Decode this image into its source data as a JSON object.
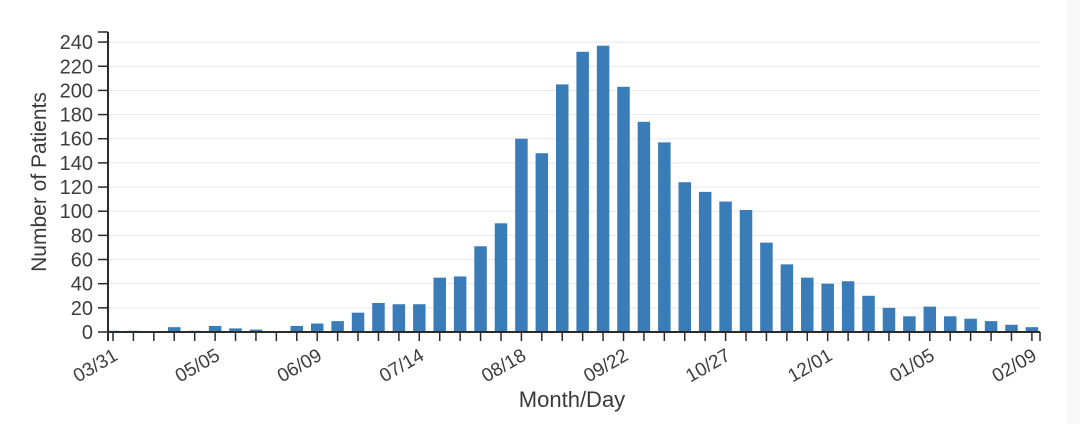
{
  "chart_data": {
    "type": "bar",
    "title": "",
    "xlabel": "Month/Day",
    "ylabel": "Number of Patients",
    "legend": "none",
    "grid": "horizontal",
    "ylim": [
      0,
      248
    ],
    "y_ticks": [
      0,
      20,
      40,
      60,
      80,
      100,
      120,
      140,
      160,
      180,
      200,
      220,
      240
    ],
    "x_label_every": 5,
    "x_tick_labels_visible": [
      "03/31",
      "05/05",
      "06/09",
      "07/14",
      "08/18",
      "09/22",
      "10/27",
      "12/01",
      "01/05",
      "02/09"
    ],
    "categories": [
      "03/31",
      "04/07",
      "04/14",
      "04/21",
      "04/28",
      "05/05",
      "05/12",
      "05/19",
      "05/26",
      "06/02",
      "06/09",
      "06/16",
      "06/23",
      "06/30",
      "07/07",
      "07/14",
      "07/21",
      "07/28",
      "08/04",
      "08/11",
      "08/18",
      "08/25",
      "09/01",
      "09/08",
      "09/15",
      "09/22",
      "09/29",
      "10/06",
      "10/13",
      "10/20",
      "10/27",
      "11/03",
      "11/10",
      "11/17",
      "11/24",
      "12/01",
      "12/08",
      "12/15",
      "12/22",
      "12/29",
      "01/05",
      "01/12",
      "01/19",
      "01/26",
      "02/02",
      "02/09"
    ],
    "values": [
      1,
      1,
      0,
      4,
      1,
      5,
      3,
      2,
      0,
      5,
      7,
      9,
      16,
      24,
      23,
      23,
      45,
      46,
      71,
      90,
      160,
      148,
      205,
      232,
      237,
      203,
      174,
      157,
      124,
      116,
      108,
      101,
      74,
      56,
      45,
      40,
      42,
      30,
      20,
      13,
      21,
      13,
      11,
      9,
      6,
      4
    ],
    "colors": {
      "bar": "#3a7cb8",
      "grid": "#e8e8e8",
      "axis": "#2b2b2b",
      "text": "#3d3d3d"
    }
  }
}
